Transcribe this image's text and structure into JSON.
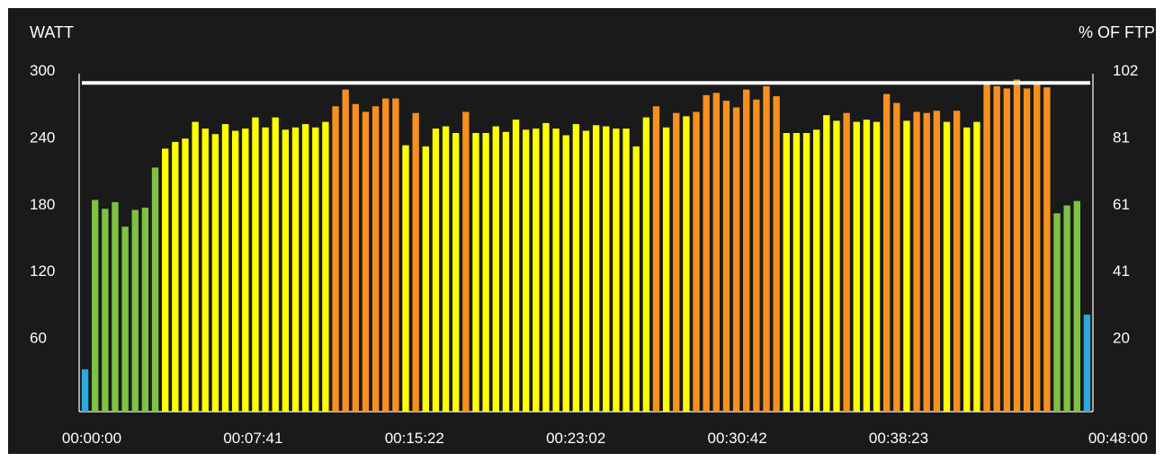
{
  "chart_data": {
    "type": "bar",
    "title": "",
    "ylabel_left": "WATT",
    "ylabel_right": "% OF FTP",
    "ylim": [
      0,
      300
    ],
    "left_ticks": [
      {
        "value": 60,
        "label": "60"
      },
      {
        "value": 120,
        "label": "120"
      },
      {
        "value": 180,
        "label": "180"
      },
      {
        "value": 240,
        "label": "240"
      },
      {
        "value": 300,
        "label": "300"
      }
    ],
    "right_ticks": [
      {
        "value": 60,
        "label": "20"
      },
      {
        "value": 120,
        "label": "41"
      },
      {
        "value": 180,
        "label": "61"
      },
      {
        "value": 240,
        "label": "81"
      },
      {
        "value": 300,
        "label": "102"
      }
    ],
    "x_ticks": [
      "00:00:00",
      "00:07:41",
      "00:15:22",
      "00:23:02",
      "00:30:42",
      "00:38:23",
      "00:48:00"
    ],
    "reference_line": 295,
    "zone_colors": {
      "blue": "#29a9e0",
      "green": "#7dc242",
      "yellow": "#ffff00",
      "orange": "#f7901e"
    },
    "bars": [
      {
        "value": 38,
        "zone": "blue"
      },
      {
        "value": 190,
        "zone": "green"
      },
      {
        "value": 182,
        "zone": "green"
      },
      {
        "value": 188,
        "zone": "green"
      },
      {
        "value": 166,
        "zone": "green"
      },
      {
        "value": 181,
        "zone": "green"
      },
      {
        "value": 183,
        "zone": "green"
      },
      {
        "value": 219,
        "zone": "green"
      },
      {
        "value": 236,
        "zone": "yellow"
      },
      {
        "value": 242,
        "zone": "yellow"
      },
      {
        "value": 245,
        "zone": "yellow"
      },
      {
        "value": 260,
        "zone": "yellow"
      },
      {
        "value": 254,
        "zone": "yellow"
      },
      {
        "value": 249,
        "zone": "yellow"
      },
      {
        "value": 258,
        "zone": "yellow"
      },
      {
        "value": 252,
        "zone": "yellow"
      },
      {
        "value": 254,
        "zone": "yellow"
      },
      {
        "value": 264,
        "zone": "yellow"
      },
      {
        "value": 255,
        "zone": "yellow"
      },
      {
        "value": 264,
        "zone": "yellow"
      },
      {
        "value": 253,
        "zone": "yellow"
      },
      {
        "value": 255,
        "zone": "yellow"
      },
      {
        "value": 258,
        "zone": "yellow"
      },
      {
        "value": 255,
        "zone": "yellow"
      },
      {
        "value": 260,
        "zone": "yellow"
      },
      {
        "value": 274,
        "zone": "orange"
      },
      {
        "value": 289,
        "zone": "orange"
      },
      {
        "value": 276,
        "zone": "orange"
      },
      {
        "value": 269,
        "zone": "orange"
      },
      {
        "value": 274,
        "zone": "orange"
      },
      {
        "value": 281,
        "zone": "orange"
      },
      {
        "value": 281,
        "zone": "orange"
      },
      {
        "value": 239,
        "zone": "yellow"
      },
      {
        "value": 268,
        "zone": "orange"
      },
      {
        "value": 238,
        "zone": "yellow"
      },
      {
        "value": 254,
        "zone": "yellow"
      },
      {
        "value": 256,
        "zone": "yellow"
      },
      {
        "value": 250,
        "zone": "yellow"
      },
      {
        "value": 269,
        "zone": "orange"
      },
      {
        "value": 250,
        "zone": "yellow"
      },
      {
        "value": 250,
        "zone": "yellow"
      },
      {
        "value": 256,
        "zone": "yellow"
      },
      {
        "value": 251,
        "zone": "yellow"
      },
      {
        "value": 262,
        "zone": "yellow"
      },
      {
        "value": 253,
        "zone": "yellow"
      },
      {
        "value": 254,
        "zone": "yellow"
      },
      {
        "value": 259,
        "zone": "yellow"
      },
      {
        "value": 254,
        "zone": "yellow"
      },
      {
        "value": 248,
        "zone": "yellow"
      },
      {
        "value": 258,
        "zone": "yellow"
      },
      {
        "value": 252,
        "zone": "yellow"
      },
      {
        "value": 257,
        "zone": "yellow"
      },
      {
        "value": 256,
        "zone": "yellow"
      },
      {
        "value": 254,
        "zone": "yellow"
      },
      {
        "value": 254,
        "zone": "yellow"
      },
      {
        "value": 238,
        "zone": "yellow"
      },
      {
        "value": 264,
        "zone": "yellow"
      },
      {
        "value": 274,
        "zone": "orange"
      },
      {
        "value": 255,
        "zone": "yellow"
      },
      {
        "value": 268,
        "zone": "orange"
      },
      {
        "value": 265,
        "zone": "yellow"
      },
      {
        "value": 269,
        "zone": "orange"
      },
      {
        "value": 284,
        "zone": "orange"
      },
      {
        "value": 286,
        "zone": "orange"
      },
      {
        "value": 279,
        "zone": "orange"
      },
      {
        "value": 273,
        "zone": "orange"
      },
      {
        "value": 289,
        "zone": "orange"
      },
      {
        "value": 280,
        "zone": "orange"
      },
      {
        "value": 292,
        "zone": "orange"
      },
      {
        "value": 283,
        "zone": "orange"
      },
      {
        "value": 250,
        "zone": "yellow"
      },
      {
        "value": 250,
        "zone": "yellow"
      },
      {
        "value": 250,
        "zone": "yellow"
      },
      {
        "value": 253,
        "zone": "yellow"
      },
      {
        "value": 266,
        "zone": "yellow"
      },
      {
        "value": 261,
        "zone": "yellow"
      },
      {
        "value": 268,
        "zone": "orange"
      },
      {
        "value": 260,
        "zone": "yellow"
      },
      {
        "value": 262,
        "zone": "yellow"
      },
      {
        "value": 260,
        "zone": "yellow"
      },
      {
        "value": 285,
        "zone": "orange"
      },
      {
        "value": 277,
        "zone": "orange"
      },
      {
        "value": 261,
        "zone": "yellow"
      },
      {
        "value": 269,
        "zone": "orange"
      },
      {
        "value": 268,
        "zone": "orange"
      },
      {
        "value": 270,
        "zone": "orange"
      },
      {
        "value": 260,
        "zone": "yellow"
      },
      {
        "value": 270,
        "zone": "orange"
      },
      {
        "value": 255,
        "zone": "yellow"
      },
      {
        "value": 260,
        "zone": "yellow"
      },
      {
        "value": 294,
        "zone": "orange"
      },
      {
        "value": 292,
        "zone": "orange"
      },
      {
        "value": 290,
        "zone": "orange"
      },
      {
        "value": 298,
        "zone": "orange"
      },
      {
        "value": 290,
        "zone": "orange"
      },
      {
        "value": 294,
        "zone": "orange"
      },
      {
        "value": 291,
        "zone": "orange"
      },
      {
        "value": 178,
        "zone": "green"
      },
      {
        "value": 185,
        "zone": "green"
      },
      {
        "value": 189,
        "zone": "green"
      },
      {
        "value": 87,
        "zone": "blue"
      }
    ]
  }
}
